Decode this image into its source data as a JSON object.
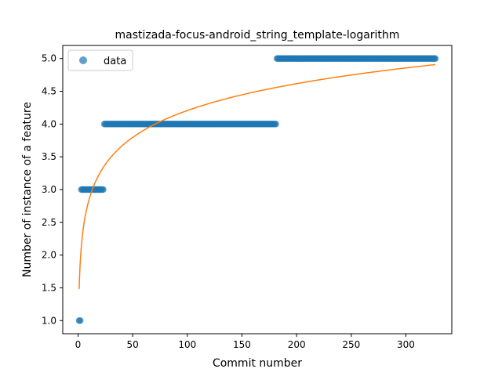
{
  "chart_data": {
    "type": "scatter",
    "title": "mastizada-focus-android_string_template-logarithm",
    "xlabel": "Commit number",
    "ylabel": "Number of instance of a feature",
    "xlim": [
      -14,
      342
    ],
    "ylim": [
      0.8,
      5.2
    ],
    "x_ticks": [
      0,
      50,
      100,
      150,
      200,
      250,
      300
    ],
    "x_tick_labels": [
      "0",
      "50",
      "100",
      "150",
      "200",
      "250",
      "300"
    ],
    "y_ticks": [
      1.0,
      1.5,
      2.0,
      2.5,
      3.0,
      3.5,
      4.0,
      4.5,
      5.0
    ],
    "y_tick_labels": [
      "1.0",
      "1.5",
      "2.0",
      "2.5",
      "3.0",
      "3.5",
      "4.0",
      "4.5",
      "5.0"
    ],
    "grid": false,
    "legend": {
      "position": "top-left",
      "entries": [
        "data"
      ]
    },
    "colors": {
      "data": "#1f77b4",
      "fit": "#ff7f0e"
    },
    "series": [
      {
        "name": "data",
        "kind": "points",
        "segments": [
          {
            "x_start": 1,
            "x_end": 2,
            "y": 1.0
          },
          {
            "x_start": 3,
            "x_end": 23,
            "y": 3.0
          },
          {
            "x_start": 24,
            "x_end": 181,
            "y": 4.0
          },
          {
            "x_start": 182,
            "x_end": 327,
            "y": 5.0
          }
        ]
      },
      {
        "kind": "line",
        "function": "logarithmic",
        "coefficients": {
          "a": 0.592,
          "b": 1.48
        },
        "x_range": [
          1,
          327
        ]
      }
    ]
  }
}
